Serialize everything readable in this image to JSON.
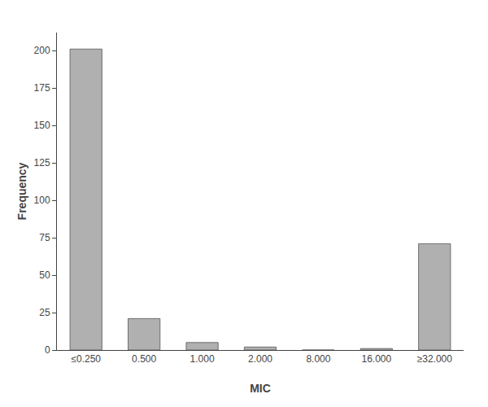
{
  "chart_data": {
    "type": "bar",
    "categories": [
      "≤0.250",
      "0.500",
      "1.000",
      "2.000",
      "8.000",
      "16.000",
      "≥32.000"
    ],
    "values": [
      201,
      21,
      5,
      2,
      0,
      1,
      71
    ],
    "color": "#b0b0b0",
    "xlabel": "MIC",
    "ylabel": "Frequency",
    "ylim": [
      0,
      212
    ],
    "yticks": [
      0,
      25,
      50,
      75,
      100,
      125,
      150,
      175,
      200
    ],
    "grid": false
  }
}
